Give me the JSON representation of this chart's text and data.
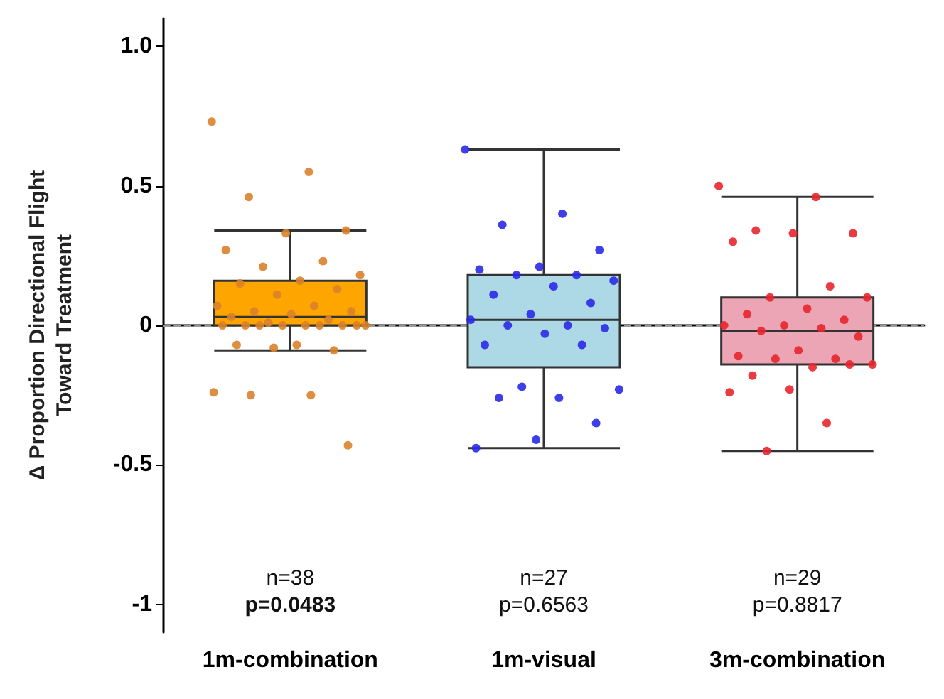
{
  "chart_data": {
    "type": "box",
    "categories": [
      "1m-combination",
      "1m-visual",
      "3m-combination"
    ],
    "ylabel": "Δ Proportion Directional Flight\nToward Treatment",
    "ylim": [
      -1.1,
      1.1
    ],
    "yticks": [
      {
        "value": 1,
        "label": "1.0"
      },
      0.5,
      0,
      -0.5,
      -1
    ],
    "grid": false,
    "series": [
      {
        "colors": [
          "#ffa500",
          "#add8e6",
          "#eba5b5"
        ],
        "boxes": [
          {
            "low": -0.09,
            "q1": 0,
            "median": 0.03,
            "q3": 0.16,
            "high": 0.34
          },
          {
            "low": -0.44,
            "q1": -0.15,
            "median": 0.02,
            "q3": 0.18,
            "high": 0.63
          },
          {
            "low": -0.45,
            "q1": -0.14,
            "median": -0.02,
            "q3": 0.1,
            "high": 0.46
          }
        ]
      },
      {
        "type": "scatter",
        "color": "#d9822b",
        "x": [
          "1m-combination",
          "1m-combination",
          "1m-combination",
          "1m-combination",
          "1m-combination",
          "1m-combination",
          "1m-combination",
          "1m-combination",
          "1m-combination",
          "1m-combination",
          "1m-combination",
          "1m-combination",
          "1m-combination",
          "1m-combination",
          "1m-combination",
          "1m-combination",
          "1m-combination",
          "1m-combination",
          "1m-combination",
          "1m-combination",
          "1m-combination",
          "1m-combination",
          "1m-combination",
          "1m-combination",
          "1m-combination",
          "1m-combination",
          "1m-combination",
          "1m-combination",
          "1m-combination",
          "1m-combination",
          "1m-combination",
          "1m-combination",
          "1m-combination",
          "1m-combination",
          "1m-combination",
          "1m-combination",
          "1m-combination",
          "1m-combination"
        ],
        "values": [
          0.73,
          0.55,
          0.46,
          0.34,
          0.33,
          0.27,
          0.23,
          0.21,
          0.18,
          0.16,
          0.15,
          0.13,
          0.11,
          0.07,
          0.07,
          0.05,
          0.05,
          0.04,
          0.03,
          0.02,
          0.01,
          0,
          0,
          0,
          0,
          0,
          0,
          0,
          0,
          0,
          -0.07,
          -0.07,
          -0.09,
          -0.08,
          -0.24,
          -0.25,
          -0.25,
          -0.43
        ]
      },
      {
        "type": "scatter",
        "color": "#2a2ae8",
        "x": [
          "1m-visual",
          "1m-visual",
          "1m-visual",
          "1m-visual",
          "1m-visual",
          "1m-visual",
          "1m-visual",
          "1m-visual",
          "1m-visual",
          "1m-visual",
          "1m-visual",
          "1m-visual",
          "1m-visual",
          "1m-visual",
          "1m-visual",
          "1m-visual",
          "1m-visual",
          "1m-visual",
          "1m-visual",
          "1m-visual",
          "1m-visual",
          "1m-visual",
          "1m-visual",
          "1m-visual",
          "1m-visual",
          "1m-visual",
          "1m-visual"
        ],
        "values": [
          0.63,
          0.4,
          0.36,
          0.27,
          0.21,
          0.2,
          0.18,
          0.18,
          0.16,
          0.14,
          0.11,
          0.08,
          0.04,
          0.02,
          0,
          0,
          -0.01,
          -0.03,
          -0.07,
          -0.07,
          -0.22,
          -0.23,
          -0.26,
          -0.26,
          -0.35,
          -0.41,
          -0.44
        ]
      },
      {
        "type": "scatter",
        "color": "#e8262e",
        "x": [
          "3m-combination",
          "3m-combination",
          "3m-combination",
          "3m-combination",
          "3m-combination",
          "3m-combination",
          "3m-combination",
          "3m-combination",
          "3m-combination",
          "3m-combination",
          "3m-combination",
          "3m-combination",
          "3m-combination",
          "3m-combination",
          "3m-combination",
          "3m-combination",
          "3m-combination",
          "3m-combination",
          "3m-combination",
          "3m-combination",
          "3m-combination",
          "3m-combination",
          "3m-combination",
          "3m-combination",
          "3m-combination",
          "3m-combination",
          "3m-combination",
          "3m-combination",
          "3m-combination"
        ],
        "values": [
          0.5,
          0.46,
          0.34,
          0.33,
          0.33,
          0.3,
          0.14,
          0.1,
          0.1,
          0.06,
          0.04,
          0.02,
          0,
          0,
          -0.01,
          -0.02,
          -0.04,
          -0.09,
          -0.11,
          -0.12,
          -0.12,
          -0.14,
          -0.15,
          -0.18,
          -0.14,
          -0.23,
          -0.24,
          -0.35,
          -0.45
        ]
      }
    ],
    "ref_lines": [
      {
        "axis": "y",
        "value": 0,
        "color": "#999999",
        "line_style": "dashed"
      }
    ],
    "annotations": [
      "n=38",
      "p=0.0483",
      "n=27",
      "p=0.6563",
      "n=29",
      "p=0.8817"
    ]
  }
}
